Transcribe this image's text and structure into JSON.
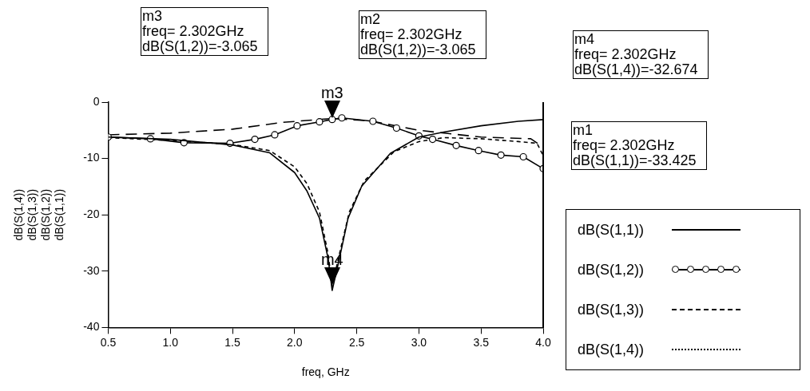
{
  "chart_data": {
    "type": "line",
    "xlabel": "freq, GHz",
    "ylabel": "dB(S(1,4))\ndB(S(1,3))\ndB(S(1,2))\ndB(S(1,1))",
    "xlim": [
      0.5,
      4.0
    ],
    "ylim": [
      -40,
      0
    ],
    "xticks": [
      0.5,
      {
        "value": 1,
        "label": "1.0"
      },
      1.5,
      {
        "value": 2,
        "label": "2.0"
      },
      2.5,
      {
        "value": 3,
        "label": "3.0"
      },
      3.5,
      {
        "value": 4,
        "label": "4.0"
      }
    ],
    "yticks": [
      -40,
      -30,
      -20,
      -10,
      0
    ],
    "grid": false,
    "legend": "right",
    "series": [
      {
        "name": "dB(S(1,1))",
        "color": "#000000",
        "marker": "none",
        "line_style": "solid",
        "x": [
          0.5,
          1.0,
          1.5,
          1.8,
          2.0,
          2.1,
          2.2,
          2.27,
          2.302,
          2.36,
          2.43,
          2.54,
          2.77,
          3.0,
          3.2,
          3.5,
          3.8,
          4.0
        ],
        "values": [
          -6.2,
          -6.6,
          -7.6,
          -9.0,
          -12.5,
          -15.8,
          -20.6,
          -27.8,
          -33.425,
          -27.8,
          -20.6,
          -14.9,
          -9.1,
          -6.2,
          -5.3,
          -4.2,
          -3.4,
          -3.1
        ]
      },
      {
        "name": "dB(S(1,2))",
        "color": "#000000",
        "marker": "circle",
        "line_style": "solid",
        "x": [
          0.5,
          0.84,
          1.11,
          1.48,
          1.68,
          1.84,
          2.02,
          2.2,
          2.302,
          2.38,
          2.63,
          2.82,
          3.0,
          3.11,
          3.3,
          3.48,
          3.66,
          3.84,
          4.0
        ],
        "values": [
          -6.2,
          -6.5,
          -7.2,
          -7.3,
          -6.6,
          -5.8,
          -4.2,
          -3.5,
          -3.065,
          -2.8,
          -3.4,
          -4.6,
          -6.0,
          -6.6,
          -7.7,
          -8.6,
          -9.4,
          -9.7,
          -11.8
        ]
      },
      {
        "name": "dB(S(1,3))",
        "color": "#000000",
        "marker": "none",
        "line_style": "dashed",
        "x": [
          0.5,
          1.0,
          1.5,
          1.9,
          2.3,
          2.6,
          3.0,
          3.5,
          3.9,
          4.0
        ],
        "values": [
          -5.8,
          -5.5,
          -4.8,
          -3.6,
          -2.9,
          -3.3,
          -5.0,
          -6.2,
          -6.5,
          -8.0
        ]
      },
      {
        "name": "dB(S(1,4))",
        "color": "#000000",
        "marker": "none",
        "line_style": "dotted",
        "x": [
          0.5,
          1.0,
          1.5,
          1.8,
          2.0,
          2.1,
          2.2,
          2.27,
          2.302,
          2.36,
          2.44,
          2.56,
          2.8,
          3.0,
          3.2,
          3.5,
          3.8,
          3.95,
          4.0
        ],
        "values": [
          -6.3,
          -6.8,
          -7.5,
          -8.6,
          -11.5,
          -14.5,
          -19.5,
          -27.0,
          -32.674,
          -27.0,
          -19.5,
          -14.0,
          -8.8,
          -7.0,
          -6.3,
          -6.5,
          -7.0,
          -7.3,
          -9.5
        ]
      }
    ],
    "annotations": [
      "m3\nfreq= 2.302GHz\ndB(S(1,2))=-3.065",
      "m2\nfreq= 2.302GHz\ndB(S(1,2))=-3.065",
      "m4\nfreq= 2.302GHz\ndB(S(1,4))=-32.674",
      "m1\nfreq= 2.302GHz\ndB(S(1,1))=-33.425",
      {
        "text": "m3",
        "x": 2.302,
        "y": -3.065
      },
      {
        "text": "m4",
        "x": 2.302,
        "y": -32.674
      }
    ]
  }
}
